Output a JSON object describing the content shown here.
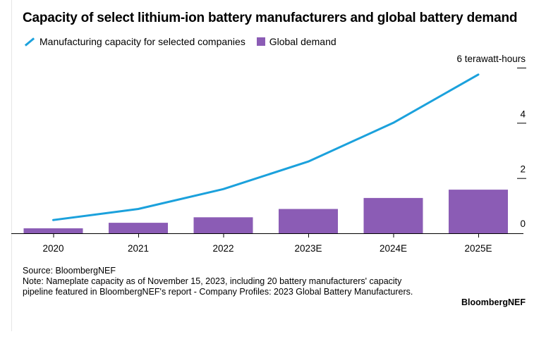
{
  "title": "Capacity of select lithium-ion battery manufacturers and global battery demand",
  "legend": {
    "line_label": "Manufacturing capacity for selected companies",
    "bar_label": "Global demand"
  },
  "colors": {
    "line": "#1ba1dc",
    "bar": "#8b5cb5",
    "axis": "#000000"
  },
  "chart_data": {
    "type": "bar",
    "categories": [
      "2020",
      "2021",
      "2022",
      "2023E",
      "2024E",
      "2025E"
    ],
    "series": [
      {
        "name": "Global demand",
        "kind": "bar",
        "values": [
          0.18,
          0.38,
          0.58,
          0.88,
          1.28,
          1.58
        ]
      },
      {
        "name": "Manufacturing capacity for selected companies",
        "kind": "line",
        "values": [
          0.48,
          0.88,
          1.6,
          2.6,
          4.0,
          5.75
        ]
      }
    ],
    "ylabel": "",
    "y_unit_label": "6 terawatt-hours",
    "yticks": [
      0,
      2,
      4,
      6
    ],
    "ytick_labels": [
      "0",
      "2",
      "4",
      "6 terawatt-hours"
    ],
    "ylim": [
      0,
      6
    ],
    "grid": false,
    "legend_position": "top-left"
  },
  "footer": {
    "source": "Source: BloombergNEF",
    "note": "Note: Nameplate capacity as of November 15, 2023, including 20 battery manufacturers' capacity pipeline featured in BloombergNEF's report - Company Profiles: 2023 Global Battery Manufacturers.",
    "brand": "BloombergNEF"
  }
}
